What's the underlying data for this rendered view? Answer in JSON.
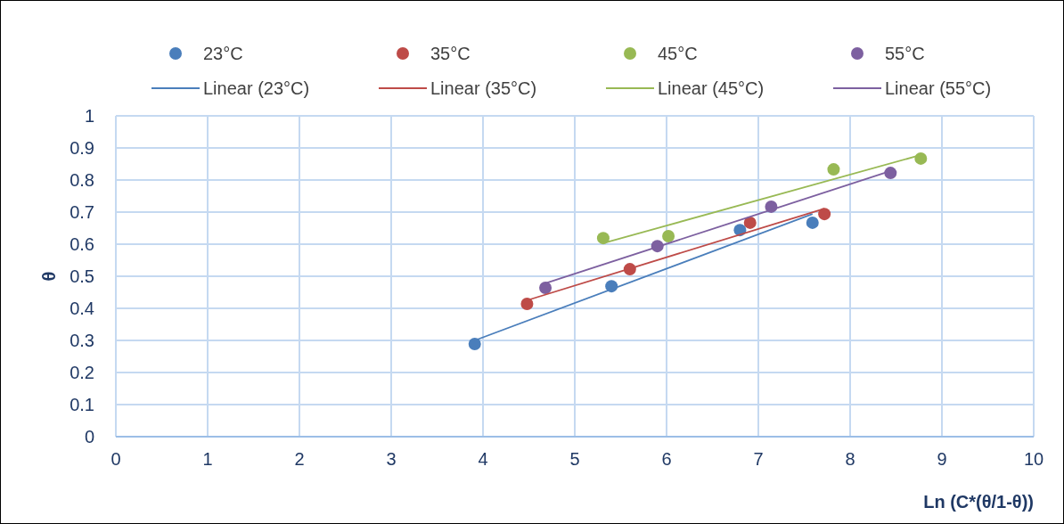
{
  "chart_data": {
    "type": "scatter",
    "xlabel": "Ln (C*(θ/1-θ))",
    "ylabel": "θ",
    "xlim": [
      0,
      10
    ],
    "ylim": [
      0,
      1
    ],
    "xticks": [
      0,
      1,
      2,
      3,
      4,
      5,
      6,
      7,
      8,
      9,
      10
    ],
    "yticks": [
      0,
      0.1,
      0.2,
      0.3,
      0.4,
      0.5,
      0.6,
      0.7,
      0.8,
      0.9,
      1
    ],
    "grid": true,
    "legend": "top",
    "marker": "circle",
    "series": [
      {
        "name": "23°C",
        "color": "#4a7ebb",
        "x": [
          3.91,
          5.4,
          6.8,
          7.59
        ],
        "values": [
          0.289,
          0.469,
          0.644,
          0.667
        ]
      },
      {
        "name": "35°C",
        "color": "#be4b48",
        "x": [
          4.48,
          5.6,
          6.91,
          7.72
        ],
        "values": [
          0.414,
          0.522,
          0.667,
          0.694
        ]
      },
      {
        "name": "45°C",
        "color": "#98b954",
        "x": [
          5.31,
          6.02,
          7.82,
          8.77
        ],
        "values": [
          0.619,
          0.625,
          0.833,
          0.867
        ]
      },
      {
        "name": "55°C",
        "color": "#7d60a0",
        "x": [
          4.68,
          5.9,
          7.14,
          8.44
        ],
        "values": [
          0.464,
          0.594,
          0.717,
          0.822
        ]
      },
      {
        "name": "Linear (23°C)",
        "type": "line",
        "marker": "none",
        "color": "#4a7ebb",
        "x": [
          3.91,
          7.59
        ],
        "values": [
          0.3,
          0.694
        ]
      },
      {
        "name": "Linear (35°C)",
        "type": "line",
        "marker": "none",
        "color": "#be4b48",
        "x": [
          4.48,
          7.72
        ],
        "values": [
          0.425,
          0.711
        ]
      },
      {
        "name": "Linear (45°C)",
        "type": "line",
        "marker": "none",
        "color": "#98b954",
        "x": [
          5.31,
          8.77
        ],
        "values": [
          0.603,
          0.878
        ]
      },
      {
        "name": "Linear (55°C)",
        "type": "line",
        "marker": "none",
        "color": "#7d60a0",
        "x": [
          4.68,
          8.44
        ],
        "values": [
          0.478,
          0.828
        ]
      }
    ]
  }
}
